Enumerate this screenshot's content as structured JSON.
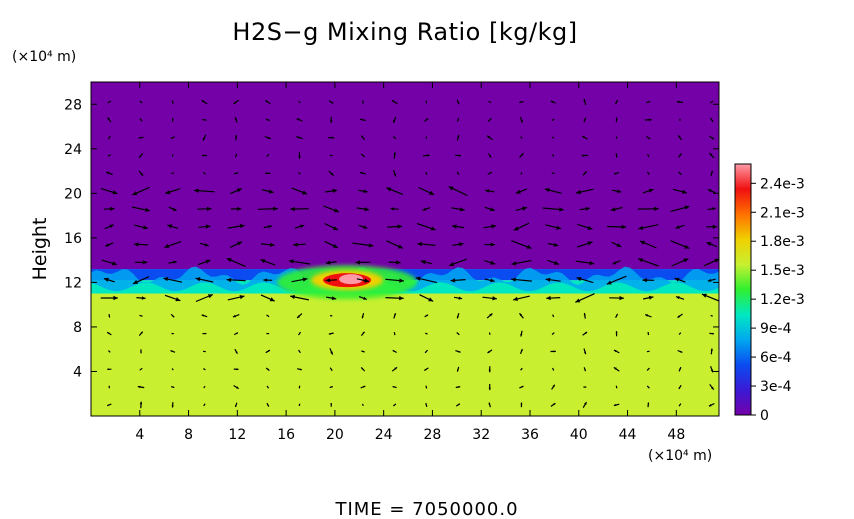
{
  "chart_data": {
    "type": "heatmap",
    "title": "H2S−g Mixing Ratio [kg/kg]",
    "ylabel": "Height",
    "y_unit": "(×10⁴ m)",
    "x_unit": "(×10⁴ m)",
    "footer": "TIME  =  7050000.0",
    "xlim": [
      0,
      51.5
    ],
    "ylim": [
      0,
      30
    ],
    "x_ticks": [
      "4",
      "8",
      "12",
      "16",
      "20",
      "24",
      "28",
      "32",
      "36",
      "40",
      "44",
      "48"
    ],
    "y_ticks": [
      "4",
      "8",
      "12",
      "16",
      "20",
      "24",
      "28"
    ],
    "colorbar": {
      "ticks": [
        "0",
        "3e-4",
        "6e-4",
        "9e-4",
        "1.2e-3",
        "1.5e-3",
        "1.8e-3",
        "2.1e-3",
        "2.4e-3"
      ],
      "range": [
        0,
        0.0026
      ],
      "colors": [
        "#7400a8",
        "#3a1ad6",
        "#0a4cf0",
        "#00a8f0",
        "#00e8c0",
        "#30f030",
        "#c8f030",
        "#f0d000",
        "#ff7000",
        "#f01010",
        "#ff9aa8"
      ]
    },
    "field": {
      "layers": [
        {
          "y_min": 0,
          "y_max": 11,
          "value": 0.00165
        },
        {
          "y_min": 11,
          "y_max": 12.2,
          "value": 0.0011
        },
        {
          "y_min": 12.2,
          "y_max": 13.2,
          "value": 0.0004
        },
        {
          "y_min": 13.2,
          "y_max": 30,
          "value": 0
        }
      ],
      "peak": {
        "x_center": 21,
        "y_center": 12.2,
        "value": 0.0025
      }
    },
    "wind_vectors": "arrows at 20 x 18 grid points; strong horizontal flow near heights 10-20, weak elsewhere"
  }
}
